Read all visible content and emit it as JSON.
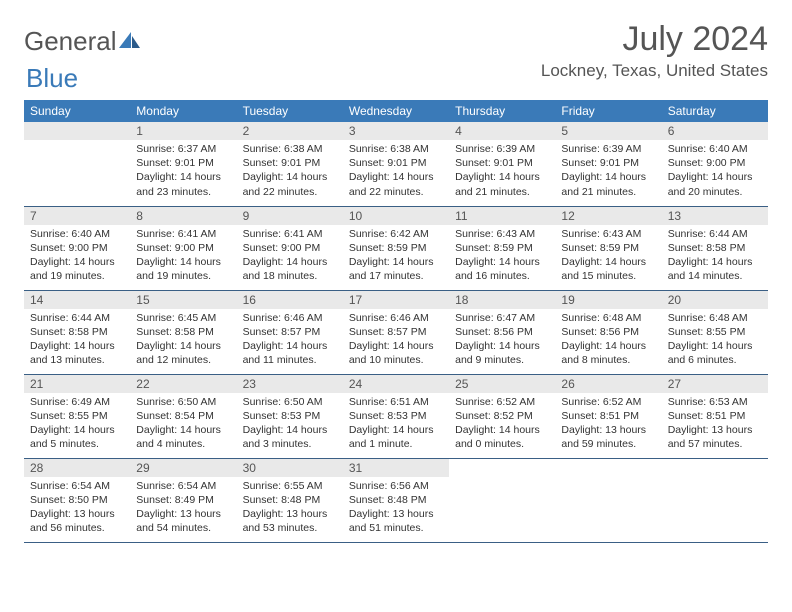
{
  "logo": {
    "text1": "General",
    "text2": "Blue"
  },
  "title": "July 2024",
  "location": "Lockney, Texas, United States",
  "colors": {
    "header_bg": "#3a7ab8",
    "daynum_bg": "#e9e9e9",
    "rule": "#3a5f85"
  },
  "weekdays": [
    "Sunday",
    "Monday",
    "Tuesday",
    "Wednesday",
    "Thursday",
    "Friday",
    "Saturday"
  ],
  "weeks": [
    [
      null,
      {
        "n": "1",
        "sunrise": "Sunrise: 6:37 AM",
        "sunset": "Sunset: 9:01 PM",
        "day1": "Daylight: 14 hours",
        "day2": "and 23 minutes."
      },
      {
        "n": "2",
        "sunrise": "Sunrise: 6:38 AM",
        "sunset": "Sunset: 9:01 PM",
        "day1": "Daylight: 14 hours",
        "day2": "and 22 minutes."
      },
      {
        "n": "3",
        "sunrise": "Sunrise: 6:38 AM",
        "sunset": "Sunset: 9:01 PM",
        "day1": "Daylight: 14 hours",
        "day2": "and 22 minutes."
      },
      {
        "n": "4",
        "sunrise": "Sunrise: 6:39 AM",
        "sunset": "Sunset: 9:01 PM",
        "day1": "Daylight: 14 hours",
        "day2": "and 21 minutes."
      },
      {
        "n": "5",
        "sunrise": "Sunrise: 6:39 AM",
        "sunset": "Sunset: 9:01 PM",
        "day1": "Daylight: 14 hours",
        "day2": "and 21 minutes."
      },
      {
        "n": "6",
        "sunrise": "Sunrise: 6:40 AM",
        "sunset": "Sunset: 9:00 PM",
        "day1": "Daylight: 14 hours",
        "day2": "and 20 minutes."
      }
    ],
    [
      {
        "n": "7",
        "sunrise": "Sunrise: 6:40 AM",
        "sunset": "Sunset: 9:00 PM",
        "day1": "Daylight: 14 hours",
        "day2": "and 19 minutes."
      },
      {
        "n": "8",
        "sunrise": "Sunrise: 6:41 AM",
        "sunset": "Sunset: 9:00 PM",
        "day1": "Daylight: 14 hours",
        "day2": "and 19 minutes."
      },
      {
        "n": "9",
        "sunrise": "Sunrise: 6:41 AM",
        "sunset": "Sunset: 9:00 PM",
        "day1": "Daylight: 14 hours",
        "day2": "and 18 minutes."
      },
      {
        "n": "10",
        "sunrise": "Sunrise: 6:42 AM",
        "sunset": "Sunset: 8:59 PM",
        "day1": "Daylight: 14 hours",
        "day2": "and 17 minutes."
      },
      {
        "n": "11",
        "sunrise": "Sunrise: 6:43 AM",
        "sunset": "Sunset: 8:59 PM",
        "day1": "Daylight: 14 hours",
        "day2": "and 16 minutes."
      },
      {
        "n": "12",
        "sunrise": "Sunrise: 6:43 AM",
        "sunset": "Sunset: 8:59 PM",
        "day1": "Daylight: 14 hours",
        "day2": "and 15 minutes."
      },
      {
        "n": "13",
        "sunrise": "Sunrise: 6:44 AM",
        "sunset": "Sunset: 8:58 PM",
        "day1": "Daylight: 14 hours",
        "day2": "and 14 minutes."
      }
    ],
    [
      {
        "n": "14",
        "sunrise": "Sunrise: 6:44 AM",
        "sunset": "Sunset: 8:58 PM",
        "day1": "Daylight: 14 hours",
        "day2": "and 13 minutes."
      },
      {
        "n": "15",
        "sunrise": "Sunrise: 6:45 AM",
        "sunset": "Sunset: 8:58 PM",
        "day1": "Daylight: 14 hours",
        "day2": "and 12 minutes."
      },
      {
        "n": "16",
        "sunrise": "Sunrise: 6:46 AM",
        "sunset": "Sunset: 8:57 PM",
        "day1": "Daylight: 14 hours",
        "day2": "and 11 minutes."
      },
      {
        "n": "17",
        "sunrise": "Sunrise: 6:46 AM",
        "sunset": "Sunset: 8:57 PM",
        "day1": "Daylight: 14 hours",
        "day2": "and 10 minutes."
      },
      {
        "n": "18",
        "sunrise": "Sunrise: 6:47 AM",
        "sunset": "Sunset: 8:56 PM",
        "day1": "Daylight: 14 hours",
        "day2": "and 9 minutes."
      },
      {
        "n": "19",
        "sunrise": "Sunrise: 6:48 AM",
        "sunset": "Sunset: 8:56 PM",
        "day1": "Daylight: 14 hours",
        "day2": "and 8 minutes."
      },
      {
        "n": "20",
        "sunrise": "Sunrise: 6:48 AM",
        "sunset": "Sunset: 8:55 PM",
        "day1": "Daylight: 14 hours",
        "day2": "and 6 minutes."
      }
    ],
    [
      {
        "n": "21",
        "sunrise": "Sunrise: 6:49 AM",
        "sunset": "Sunset: 8:55 PM",
        "day1": "Daylight: 14 hours",
        "day2": "and 5 minutes."
      },
      {
        "n": "22",
        "sunrise": "Sunrise: 6:50 AM",
        "sunset": "Sunset: 8:54 PM",
        "day1": "Daylight: 14 hours",
        "day2": "and 4 minutes."
      },
      {
        "n": "23",
        "sunrise": "Sunrise: 6:50 AM",
        "sunset": "Sunset: 8:53 PM",
        "day1": "Daylight: 14 hours",
        "day2": "and 3 minutes."
      },
      {
        "n": "24",
        "sunrise": "Sunrise: 6:51 AM",
        "sunset": "Sunset: 8:53 PM",
        "day1": "Daylight: 14 hours",
        "day2": "and 1 minute."
      },
      {
        "n": "25",
        "sunrise": "Sunrise: 6:52 AM",
        "sunset": "Sunset: 8:52 PM",
        "day1": "Daylight: 14 hours",
        "day2": "and 0 minutes."
      },
      {
        "n": "26",
        "sunrise": "Sunrise: 6:52 AM",
        "sunset": "Sunset: 8:51 PM",
        "day1": "Daylight: 13 hours",
        "day2": "and 59 minutes."
      },
      {
        "n": "27",
        "sunrise": "Sunrise: 6:53 AM",
        "sunset": "Sunset: 8:51 PM",
        "day1": "Daylight: 13 hours",
        "day2": "and 57 minutes."
      }
    ],
    [
      {
        "n": "28",
        "sunrise": "Sunrise: 6:54 AM",
        "sunset": "Sunset: 8:50 PM",
        "day1": "Daylight: 13 hours",
        "day2": "and 56 minutes."
      },
      {
        "n": "29",
        "sunrise": "Sunrise: 6:54 AM",
        "sunset": "Sunset: 8:49 PM",
        "day1": "Daylight: 13 hours",
        "day2": "and 54 minutes."
      },
      {
        "n": "30",
        "sunrise": "Sunrise: 6:55 AM",
        "sunset": "Sunset: 8:48 PM",
        "day1": "Daylight: 13 hours",
        "day2": "and 53 minutes."
      },
      {
        "n": "31",
        "sunrise": "Sunrise: 6:56 AM",
        "sunset": "Sunset: 8:48 PM",
        "day1": "Daylight: 13 hours",
        "day2": "and 51 minutes."
      },
      null,
      null,
      null
    ]
  ]
}
